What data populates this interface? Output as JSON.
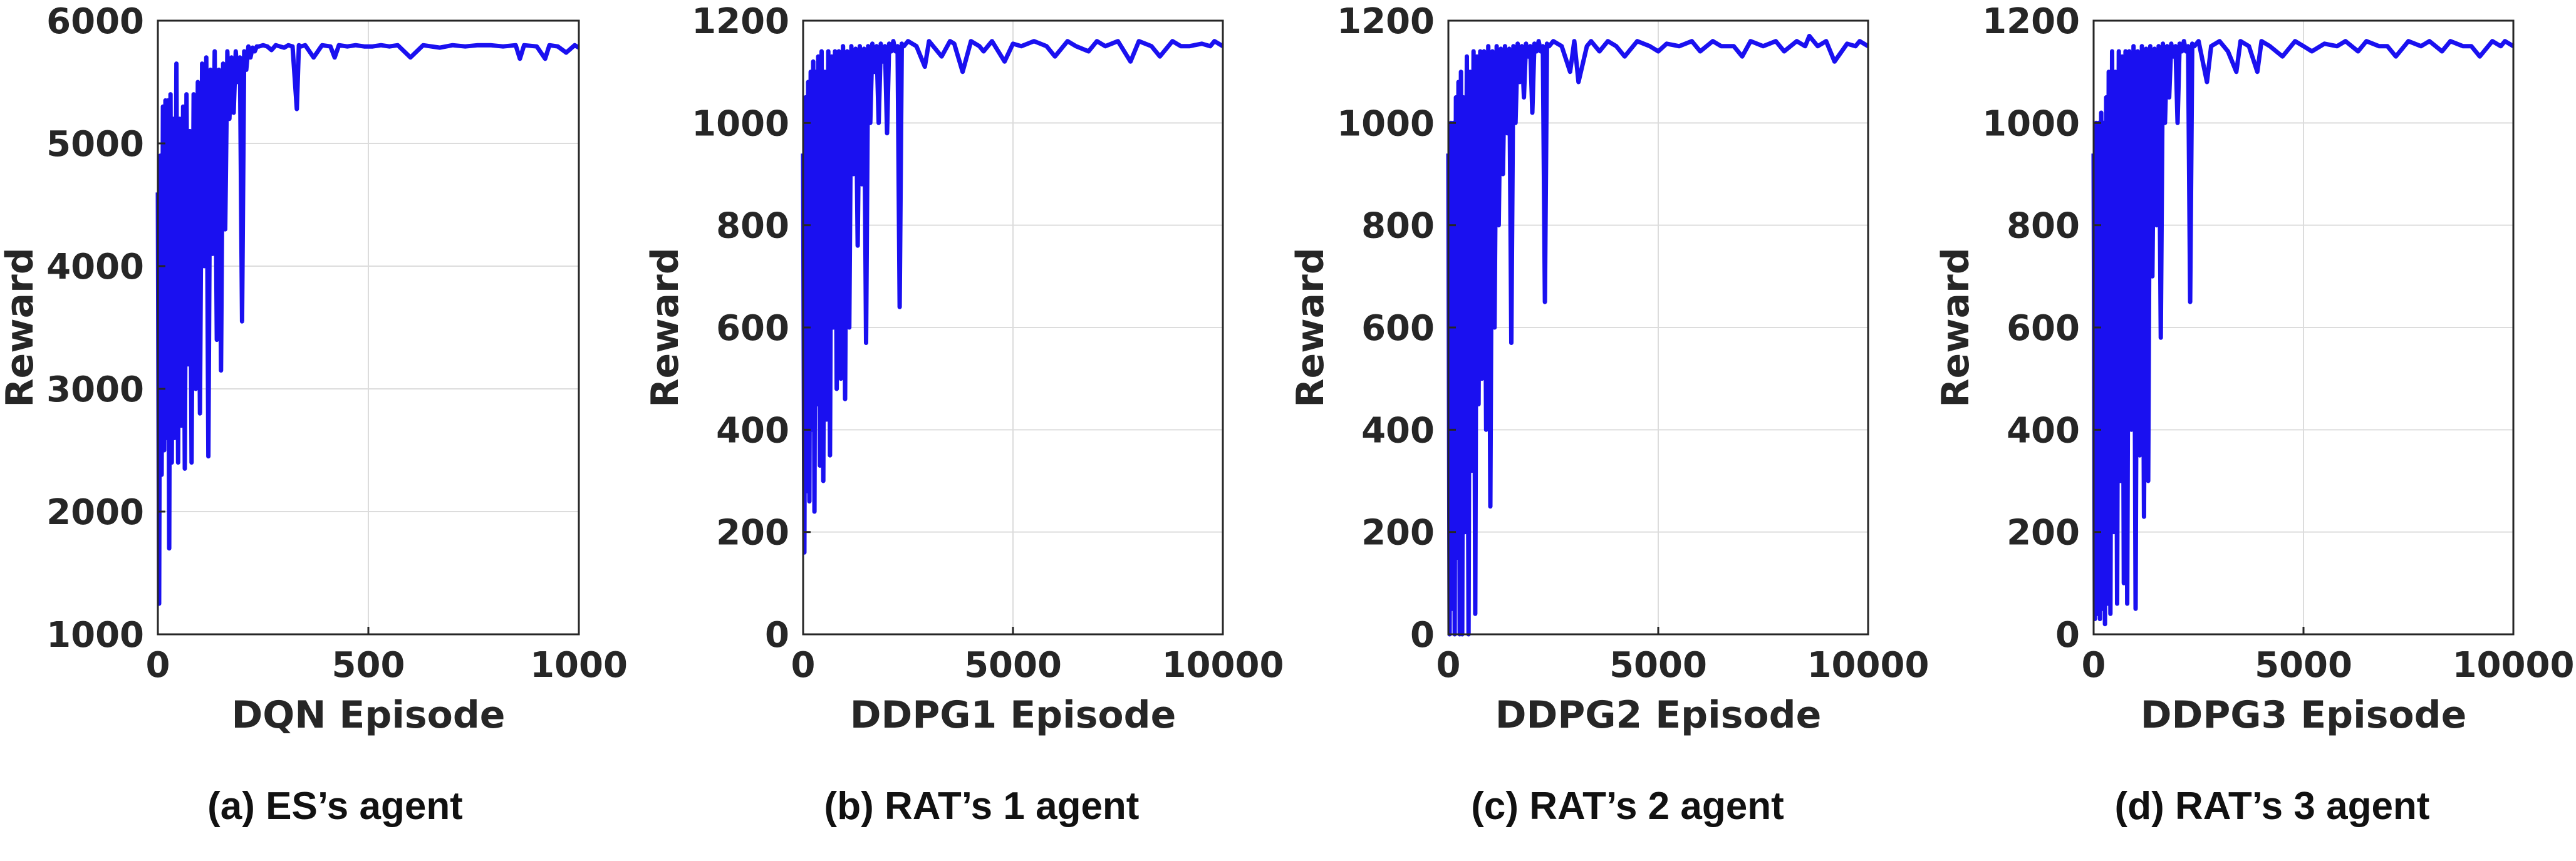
{
  "chart_data": [
    {
      "type": "line",
      "xlabel": "DQN Episode",
      "ylabel": "Reward",
      "xlim": [
        0,
        1000
      ],
      "ylim": [
        1000,
        6000
      ],
      "xticks": [
        0,
        500,
        1000
      ],
      "yticks": [
        1000,
        2000,
        3000,
        4000,
        5000,
        6000
      ],
      "grid": true,
      "caption": "(a) ES’s agent",
      "series": [
        {
          "color": "#1a10f0",
          "x": [
            0,
            3,
            6,
            9,
            12,
            15,
            18,
            21,
            24,
            27,
            30,
            33,
            36,
            40,
            44,
            48,
            52,
            56,
            60,
            64,
            68,
            72,
            76,
            80,
            85,
            90,
            95,
            100,
            105,
            110,
            115,
            120,
            125,
            130,
            135,
            140,
            145,
            150,
            155,
            160,
            165,
            170,
            175,
            180,
            185,
            190,
            195,
            200,
            205,
            210,
            215,
            220,
            225,
            230,
            235,
            240,
            250,
            260,
            270,
            280,
            290,
            300,
            310,
            320,
            330,
            335,
            340,
            350,
            370,
            390,
            410,
            420,
            430,
            450,
            470,
            490,
            510,
            530,
            550,
            570,
            600,
            630,
            650,
            670,
            700,
            730,
            760,
            790,
            820,
            850,
            860,
            870,
            900,
            920,
            930,
            950,
            970,
            990,
            1000
          ],
          "y": [
            4600,
            1250,
            4900,
            2300,
            5300,
            2500,
            5350,
            2600,
            5350,
            1700,
            5400,
            2400,
            5200,
            2600,
            5650,
            2400,
            5200,
            2700,
            5300,
            2350,
            5400,
            3200,
            5100,
            2400,
            5400,
            3000,
            5500,
            2800,
            5650,
            4000,
            5700,
            2450,
            5600,
            4100,
            5750,
            3400,
            5600,
            3150,
            5650,
            4300,
            5750,
            5200,
            5700,
            5250,
            5750,
            5500,
            5700,
            3550,
            5750,
            5600,
            5790,
            5700,
            5780,
            5750,
            5790,
            5790,
            5800,
            5790,
            5760,
            5800,
            5790,
            5780,
            5800,
            5790,
            5280,
            5800,
            5790,
            5800,
            5700,
            5800,
            5790,
            5700,
            5800,
            5790,
            5800,
            5790,
            5790,
            5800,
            5790,
            5800,
            5700,
            5800,
            5790,
            5780,
            5800,
            5790,
            5800,
            5800,
            5790,
            5800,
            5690,
            5800,
            5790,
            5690,
            5800,
            5790,
            5740,
            5800,
            5780
          ]
        }
      ]
    },
    {
      "type": "line",
      "xlabel": "DDPG1 Episode",
      "ylabel": "Reward",
      "xlim": [
        0,
        10000
      ],
      "ylim": [
        0,
        1200
      ],
      "xticks": [
        0,
        5000,
        10000
      ],
      "yticks": [
        0,
        200,
        400,
        600,
        800,
        1000,
        1200
      ],
      "grid": true,
      "caption": "(b) RAT’s 1 agent",
      "series": [
        {
          "color": "#1a10f0",
          "x": [
            0,
            30,
            60,
            90,
            120,
            150,
            180,
            210,
            240,
            270,
            300,
            330,
            360,
            400,
            440,
            480,
            520,
            560,
            600,
            640,
            680,
            720,
            760,
            800,
            850,
            900,
            950,
            1000,
            1050,
            1100,
            1150,
            1200,
            1250,
            1300,
            1350,
            1400,
            1450,
            1500,
            1550,
            1600,
            1650,
            1700,
            1750,
            1800,
            1850,
            1900,
            1950,
            2000,
            2050,
            2100,
            2150,
            2200,
            2250,
            2300,
            2350,
            2400,
            2500,
            2700,
            2900,
            3000,
            3100,
            3300,
            3500,
            3600,
            3800,
            4000,
            4200,
            4300,
            4500,
            4800,
            5000,
            5200,
            5500,
            5800,
            6000,
            6300,
            6500,
            6800,
            7000,
            7200,
            7500,
            7800,
            8000,
            8300,
            8500,
            8800,
            9000,
            9200,
            9500,
            9700,
            9800,
            10000
          ],
          "y": [
            940,
            160,
            1050,
            280,
            1080,
            260,
            1100,
            400,
            1120,
            240,
            1100,
            450,
            1130,
            330,
            1140,
            300,
            1100,
            420,
            1140,
            350,
            1130,
            600,
            1140,
            480,
            1140,
            500,
            1150,
            460,
            1140,
            600,
            1150,
            900,
            1145,
            760,
            1150,
            880,
            1145,
            570,
            1150,
            1000,
            1155,
            1100,
            1150,
            1000,
            1155,
            1120,
            1150,
            980,
            1155,
            1140,
            1160,
            1140,
            1150,
            640,
            1155,
            1150,
            1160,
            1150,
            1110,
            1160,
            1150,
            1130,
            1160,
            1155,
            1100,
            1160,
            1150,
            1140,
            1160,
            1120,
            1155,
            1150,
            1160,
            1150,
            1130,
            1160,
            1150,
            1140,
            1160,
            1150,
            1160,
            1120,
            1160,
            1150,
            1130,
            1160,
            1150,
            1150,
            1155,
            1150,
            1160,
            1150
          ]
        }
      ]
    },
    {
      "type": "line",
      "xlabel": "DDPG2 Episode",
      "ylabel": "Reward",
      "xlim": [
        0,
        10000
      ],
      "ylim": [
        0,
        1200
      ],
      "xticks": [
        0,
        5000,
        10000
      ],
      "yticks": [
        0,
        200,
        400,
        600,
        800,
        1000,
        1200
      ],
      "grid": true,
      "caption": "(c) RAT’s 2 agent",
      "series": [
        {
          "color": "#1a10f0",
          "x": [
            0,
            30,
            60,
            90,
            120,
            150,
            180,
            210,
            240,
            270,
            300,
            330,
            360,
            400,
            440,
            480,
            520,
            560,
            600,
            640,
            680,
            720,
            760,
            800,
            850,
            900,
            950,
            1000,
            1050,
            1100,
            1150,
            1200,
            1250,
            1300,
            1350,
            1400,
            1450,
            1500,
            1550,
            1600,
            1650,
            1700,
            1750,
            1800,
            1850,
            1900,
            1950,
            2000,
            2050,
            2100,
            2150,
            2200,
            2250,
            2300,
            2350,
            2400,
            2500,
            2700,
            2900,
            3000,
            3100,
            3300,
            3400,
            3600,
            3800,
            4000,
            4200,
            4500,
            4800,
            5000,
            5200,
            5500,
            5800,
            6000,
            6300,
            6500,
            6800,
            7000,
            7200,
            7500,
            7800,
            8000,
            8300,
            8500,
            8600,
            8800,
            9000,
            9200,
            9500,
            9700,
            9800,
            10000
          ],
          "y": [
            940,
            0,
            1000,
            50,
            1000,
            0,
            1050,
            150,
            1080,
            0,
            1100,
            0,
            1050,
            200,
            1130,
            0,
            1100,
            320,
            1140,
            40,
            1130,
            450,
            1140,
            500,
            1140,
            400,
            1150,
            250,
            1140,
            600,
            1150,
            800,
            1145,
            900,
            1150,
            980,
            1145,
            570,
            1150,
            1000,
            1155,
            1080,
            1150,
            1050,
            1155,
            1130,
            1150,
            1020,
            1155,
            1140,
            1160,
            1140,
            1150,
            650,
            1155,
            1150,
            1160,
            1150,
            1100,
            1160,
            1080,
            1150,
            1160,
            1140,
            1160,
            1150,
            1130,
            1160,
            1150,
            1140,
            1155,
            1150,
            1160,
            1140,
            1160,
            1150,
            1150,
            1130,
            1160,
            1150,
            1160,
            1140,
            1160,
            1150,
            1170,
            1150,
            1160,
            1120,
            1155,
            1150,
            1160,
            1150
          ]
        }
      ]
    },
    {
      "type": "line",
      "xlabel": "DDPG3 Episode",
      "ylabel": "Reward",
      "xlim": [
        0,
        10000
      ],
      "ylim": [
        0,
        1200
      ],
      "xticks": [
        0,
        5000,
        10000
      ],
      "yticks": [
        0,
        200,
        400,
        600,
        800,
        1000,
        1200
      ],
      "grid": true,
      "caption": "(d) RAT’s 3 agent",
      "series": [
        {
          "color": "#1a10f0",
          "x": [
            0,
            30,
            60,
            90,
            120,
            150,
            180,
            210,
            240,
            270,
            300,
            330,
            360,
            400,
            440,
            480,
            520,
            560,
            600,
            640,
            680,
            720,
            760,
            800,
            850,
            900,
            950,
            1000,
            1050,
            1100,
            1150,
            1200,
            1250,
            1300,
            1350,
            1400,
            1450,
            1500,
            1550,
            1600,
            1650,
            1700,
            1750,
            1800,
            1850,
            1900,
            1950,
            2000,
            2050,
            2100,
            2150,
            2200,
            2250,
            2300,
            2350,
            2400,
            2500,
            2700,
            2800,
            3000,
            3200,
            3400,
            3500,
            3700,
            3900,
            4000,
            4200,
            4500,
            4800,
            5000,
            5200,
            5500,
            5800,
            6000,
            6300,
            6500,
            6800,
            7000,
            7200,
            7500,
            7800,
            8000,
            8300,
            8500,
            8800,
            9000,
            9200,
            9500,
            9700,
            9800,
            10000
          ],
          "y": [
            940,
            30,
            1000,
            40,
            1000,
            30,
            1020,
            50,
            1000,
            20,
            1050,
            60,
            1100,
            40,
            1140,
            200,
            1100,
            60,
            1140,
            300,
            1130,
            100,
            1140,
            60,
            1140,
            400,
            1150,
            50,
            1140,
            350,
            1150,
            230,
            1145,
            300,
            1150,
            700,
            1145,
            800,
            1150,
            580,
            1155,
            1000,
            1150,
            1050,
            1155,
            1130,
            1150,
            1000,
            1155,
            1140,
            1160,
            1140,
            1150,
            650,
            1155,
            1150,
            1160,
            1080,
            1150,
            1160,
            1140,
            1100,
            1160,
            1150,
            1100,
            1160,
            1150,
            1130,
            1160,
            1150,
            1140,
            1155,
            1150,
            1160,
            1140,
            1160,
            1150,
            1150,
            1130,
            1160,
            1150,
            1160,
            1140,
            1160,
            1150,
            1150,
            1130,
            1160,
            1150,
            1160,
            1150
          ]
        }
      ]
    }
  ]
}
